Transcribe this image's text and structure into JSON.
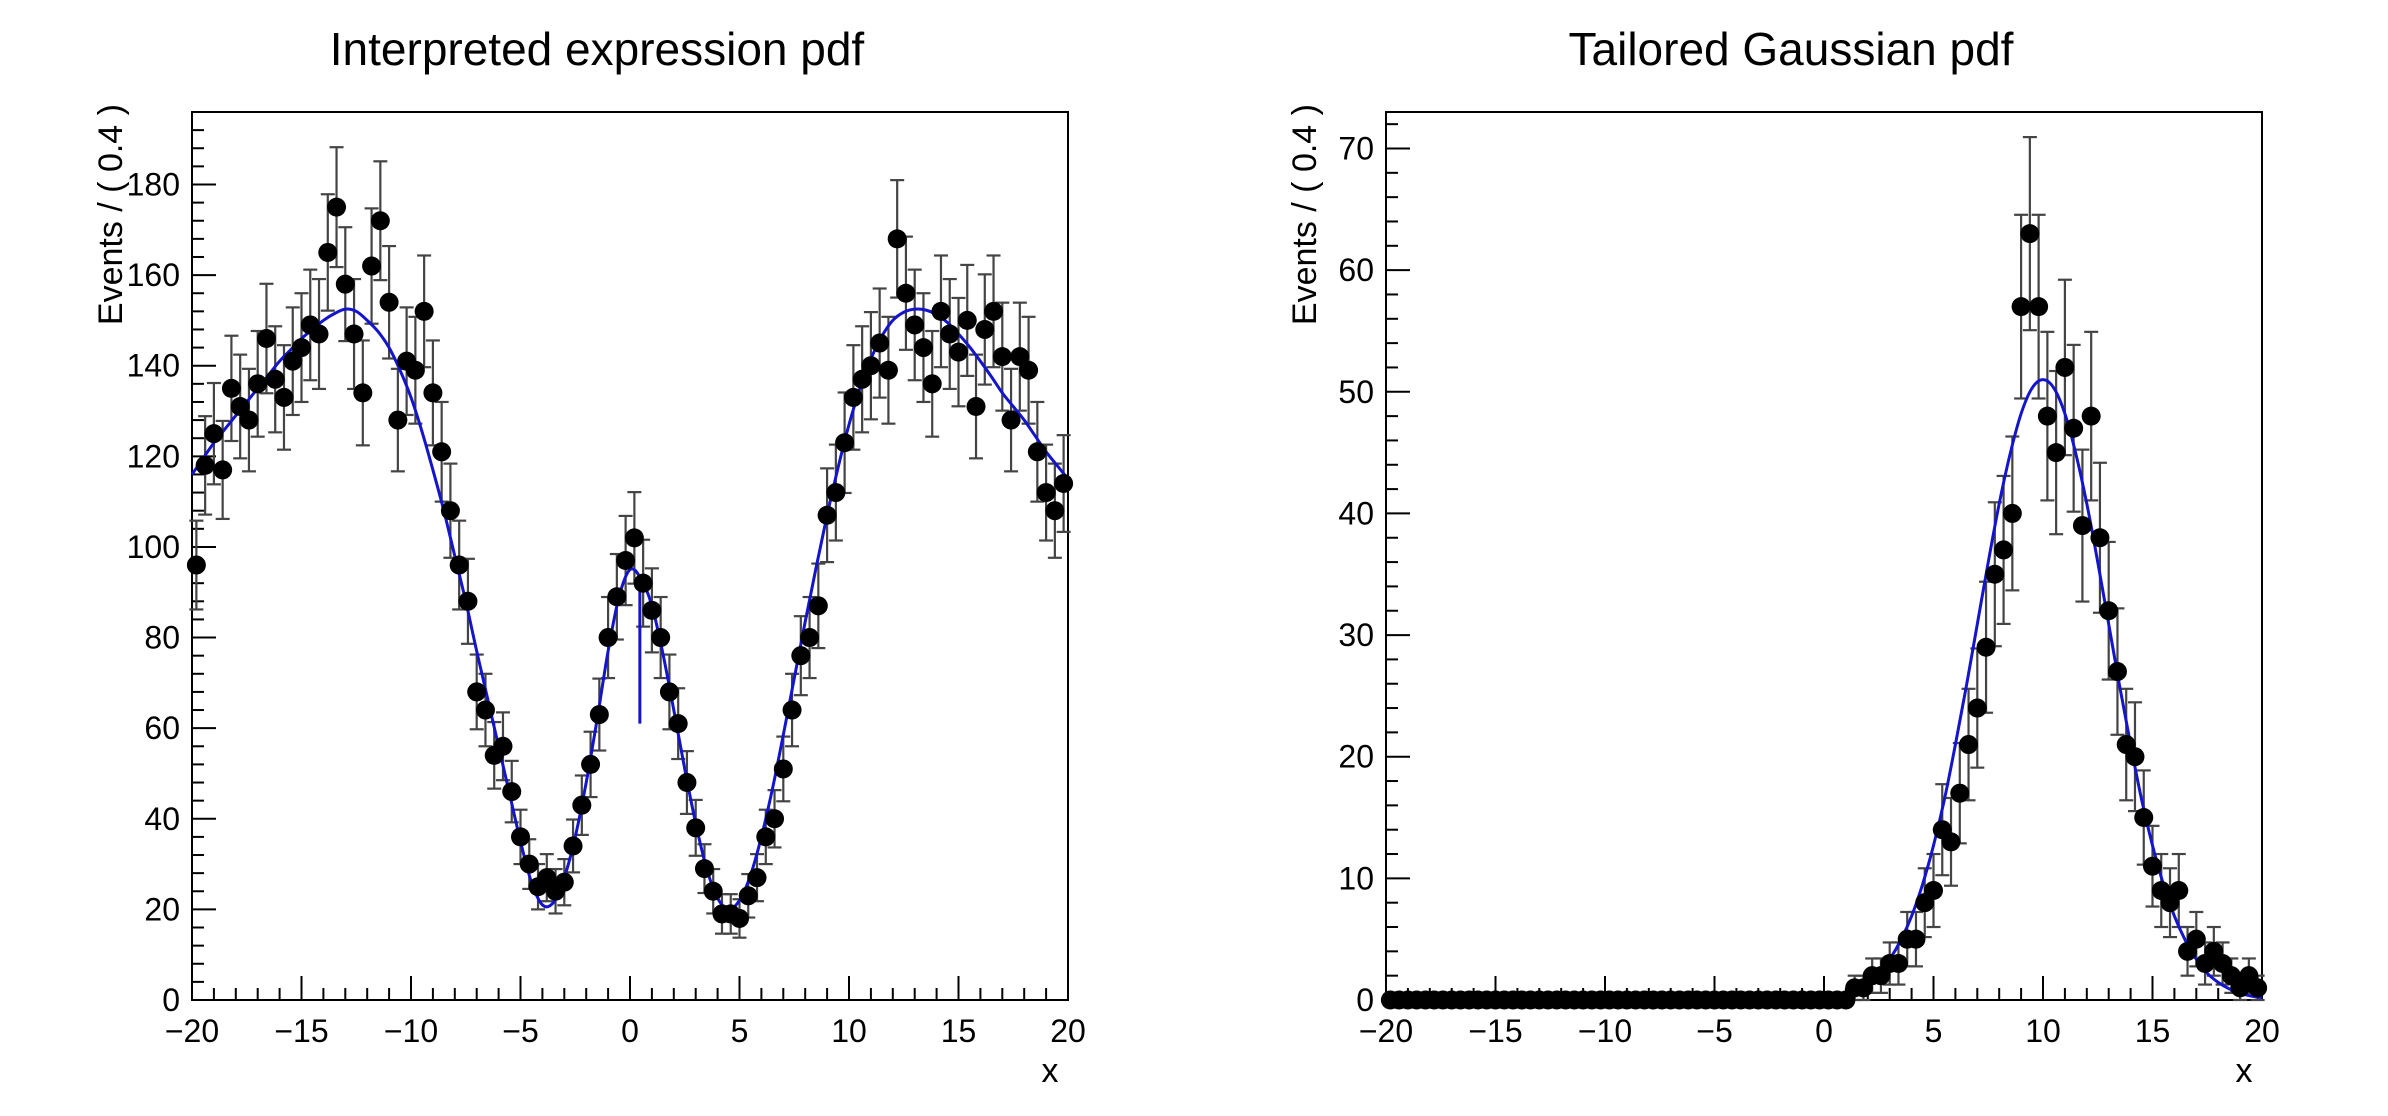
{
  "page": {
    "background": "#ffffff"
  },
  "chart_data": [
    {
      "type": "scatter",
      "title": "Interpreted expression pdf",
      "xlabel": "x",
      "ylabel": "Events / ( 0.4 )",
      "xlim": [
        -20,
        20
      ],
      "ylim": [
        0,
        196
      ],
      "x_ticks": {
        "major": 5,
        "minor": 1
      },
      "y_ticks": {
        "major": 20,
        "minor": 4
      },
      "grid": false,
      "legend": null,
      "marker": {
        "color": "#000000",
        "radius": 9.5
      },
      "error_bars": {
        "mode": "sqrt(y)",
        "color": "#444444"
      },
      "curve": {
        "color": "#1414cc",
        "width": 3,
        "notch": {
          "x": 0.45,
          "y_top": 93.5,
          "y_bottom": 61
        },
        "points": [
          [
            -20,
            116
          ],
          [
            -19.5,
            119.5
          ],
          [
            -19,
            123
          ],
          [
            -18.5,
            126
          ],
          [
            -18,
            129
          ],
          [
            -17.5,
            132
          ],
          [
            -17,
            135
          ],
          [
            -16.5,
            138
          ],
          [
            -16,
            141
          ],
          [
            -15.5,
            143.5
          ],
          [
            -15,
            146
          ],
          [
            -14.5,
            148
          ],
          [
            -14,
            150
          ],
          [
            -13.5,
            151.5
          ],
          [
            -13,
            152.5
          ],
          [
            -12.5,
            152
          ],
          [
            -12,
            150
          ],
          [
            -11.5,
            147.5
          ],
          [
            -11,
            144
          ],
          [
            -10.5,
            139
          ],
          [
            -10,
            133
          ],
          [
            -9.5,
            125.5
          ],
          [
            -9,
            117
          ],
          [
            -8.5,
            108
          ],
          [
            -8,
            98
          ],
          [
            -7.5,
            88
          ],
          [
            -7,
            77
          ],
          [
            -6.5,
            66.5
          ],
          [
            -6,
            56
          ],
          [
            -5.5,
            45.5
          ],
          [
            -5,
            35
          ],
          [
            -4.5,
            26
          ],
          [
            -4,
            21
          ],
          [
            -3.5,
            21.5
          ],
          [
            -3,
            27
          ],
          [
            -2.5,
            36
          ],
          [
            -2,
            48
          ],
          [
            -1.5,
            62
          ],
          [
            -1,
            77
          ],
          [
            -0.5,
            89
          ],
          [
            0,
            95
          ],
          [
            0.5,
            93
          ],
          [
            1,
            87
          ],
          [
            1.5,
            76.5
          ],
          [
            2,
            64
          ],
          [
            2.5,
            51
          ],
          [
            3,
            39
          ],
          [
            3.5,
            29
          ],
          [
            4,
            22.5
          ],
          [
            4.5,
            20
          ],
          [
            5,
            22
          ],
          [
            5.5,
            27.5
          ],
          [
            6,
            36
          ],
          [
            6.5,
            46.5
          ],
          [
            7,
            58.5
          ],
          [
            7.5,
            71
          ],
          [
            8,
            83.5
          ],
          [
            8.5,
            95.5
          ],
          [
            9,
            107
          ],
          [
            9.5,
            117.5
          ],
          [
            10,
            127
          ],
          [
            10.5,
            135
          ],
          [
            11,
            141.5
          ],
          [
            11.5,
            146.5
          ],
          [
            12,
            150
          ],
          [
            12.5,
            151.8
          ],
          [
            13,
            152.5
          ],
          [
            13.5,
            152.3
          ],
          [
            14,
            151.3
          ],
          [
            14.5,
            149.5
          ],
          [
            15,
            147
          ],
          [
            15.5,
            144.2
          ],
          [
            16,
            141
          ],
          [
            16.5,
            137.6
          ],
          [
            17,
            134
          ],
          [
            17.5,
            131
          ],
          [
            18,
            128
          ],
          [
            18.5,
            124.5
          ],
          [
            19,
            121
          ],
          [
            19.5,
            118
          ],
          [
            20,
            115
          ]
        ]
      },
      "points": [
        [
          -19.8,
          96
        ],
        [
          -19.4,
          118
        ],
        [
          -19.0,
          125
        ],
        [
          -18.6,
          117
        ],
        [
          -18.2,
          135
        ],
        [
          -17.8,
          131
        ],
        [
          -17.4,
          128
        ],
        [
          -17.0,
          136
        ],
        [
          -16.6,
          146
        ],
        [
          -16.2,
          137
        ],
        [
          -15.8,
          133
        ],
        [
          -15.4,
          141
        ],
        [
          -15.0,
          144
        ],
        [
          -14.6,
          149
        ],
        [
          -14.2,
          147
        ],
        [
          -13.8,
          165
        ],
        [
          -13.4,
          175
        ],
        [
          -13.0,
          158
        ],
        [
          -12.6,
          147
        ],
        [
          -12.2,
          134
        ],
        [
          -11.8,
          162
        ],
        [
          -11.4,
          172
        ],
        [
          -11.0,
          154
        ],
        [
          -10.6,
          128
        ],
        [
          -10.2,
          141
        ],
        [
          -9.8,
          139
        ],
        [
          -9.4,
          152
        ],
        [
          -9.0,
          134
        ],
        [
          -8.6,
          121
        ],
        [
          -8.2,
          108
        ],
        [
          -7.8,
          96
        ],
        [
          -7.4,
          88
        ],
        [
          -7.0,
          68
        ],
        [
          -6.6,
          64
        ],
        [
          -6.2,
          54
        ],
        [
          -5.8,
          56
        ],
        [
          -5.4,
          46
        ],
        [
          -5.0,
          36
        ],
        [
          -4.6,
          30
        ],
        [
          -4.2,
          25
        ],
        [
          -3.8,
          27
        ],
        [
          -3.4,
          24
        ],
        [
          -3.0,
          26
        ],
        [
          -2.6,
          34
        ],
        [
          -2.2,
          43
        ],
        [
          -1.8,
          52
        ],
        [
          -1.4,
          63
        ],
        [
          -1.0,
          80
        ],
        [
          -0.6,
          89
        ],
        [
          -0.2,
          97
        ],
        [
          0.2,
          102
        ],
        [
          0.6,
          92
        ],
        [
          1.0,
          86
        ],
        [
          1.4,
          80
        ],
        [
          1.8,
          68
        ],
        [
          2.2,
          61
        ],
        [
          2.6,
          48
        ],
        [
          3.0,
          38
        ],
        [
          3.4,
          29
        ],
        [
          3.8,
          24
        ],
        [
          4.2,
          19
        ],
        [
          4.6,
          19
        ],
        [
          5.0,
          18
        ],
        [
          5.4,
          23
        ],
        [
          5.8,
          27
        ],
        [
          6.2,
          36
        ],
        [
          6.6,
          40
        ],
        [
          7.0,
          51
        ],
        [
          7.4,
          64
        ],
        [
          7.8,
          76
        ],
        [
          8.2,
          80
        ],
        [
          8.6,
          87
        ],
        [
          9.0,
          107
        ],
        [
          9.4,
          112
        ],
        [
          9.8,
          123
        ],
        [
          10.2,
          133
        ],
        [
          10.6,
          137
        ],
        [
          11.0,
          140
        ],
        [
          11.4,
          145
        ],
        [
          11.8,
          139
        ],
        [
          12.2,
          168
        ],
        [
          12.6,
          156
        ],
        [
          13.0,
          149
        ],
        [
          13.4,
          144
        ],
        [
          13.8,
          136
        ],
        [
          14.2,
          152
        ],
        [
          14.6,
          147
        ],
        [
          15.0,
          143
        ],
        [
          15.4,
          150
        ],
        [
          15.8,
          131
        ],
        [
          16.2,
          148
        ],
        [
          16.6,
          152
        ],
        [
          17.0,
          142
        ],
        [
          17.4,
          128
        ],
        [
          17.8,
          142
        ],
        [
          18.2,
          139
        ],
        [
          18.6,
          121
        ],
        [
          19.0,
          112
        ],
        [
          19.4,
          108
        ],
        [
          19.8,
          114
        ]
      ]
    },
    {
      "type": "scatter",
      "title": "Tailored Gaussian pdf",
      "xlabel": "x",
      "ylabel": "Events / ( 0.4 )",
      "xlim": [
        -20,
        20
      ],
      "ylim": [
        0,
        73
      ],
      "x_ticks": {
        "major": 5,
        "minor": 1
      },
      "y_ticks": {
        "major": 10,
        "minor": 2
      },
      "grid": false,
      "legend": null,
      "marker": {
        "color": "#000000",
        "radius": 9.5
      },
      "error_bars": {
        "mode": "sqrt(y)",
        "color": "#444444"
      },
      "zero_run": {
        "x_start": -19.8,
        "x_end": 1.0,
        "step": 0.4,
        "y": 0
      },
      "curve": {
        "color": "#1414cc",
        "width": 3,
        "points": [
          [
            -20,
            0.05
          ],
          [
            -15,
            0.05
          ],
          [
            -10,
            0.05
          ],
          [
            -5,
            0.05
          ],
          [
            -2,
            0.05
          ],
          [
            -1,
            0.05
          ],
          [
            -0.5,
            0.12
          ],
          [
            0,
            0.2
          ],
          [
            0.5,
            0.3
          ],
          [
            1,
            0.56
          ],
          [
            1.5,
            0.92
          ],
          [
            2,
            1.45
          ],
          [
            2.5,
            2.2
          ],
          [
            3,
            3.35
          ],
          [
            3.5,
            4.9
          ],
          [
            4,
            6.9
          ],
          [
            4.5,
            9.5
          ],
          [
            5,
            12.7
          ],
          [
            5.5,
            16.5
          ],
          [
            6,
            21.0
          ],
          [
            6.5,
            25.8
          ],
          [
            7,
            30.9
          ],
          [
            7.5,
            36.0
          ],
          [
            8,
            40.8
          ],
          [
            8.5,
            44.9
          ],
          [
            9,
            48.2
          ],
          [
            9.5,
            50.3
          ],
          [
            10,
            51
          ],
          [
            10.5,
            50.3
          ],
          [
            11,
            48.2
          ],
          [
            11.5,
            44.9
          ],
          [
            12,
            40.8
          ],
          [
            12.5,
            36.0
          ],
          [
            13,
            30.9
          ],
          [
            13.5,
            25.8
          ],
          [
            14,
            21.0
          ],
          [
            14.5,
            16.5
          ],
          [
            15,
            12.7
          ],
          [
            15.5,
            9.5
          ],
          [
            16,
            6.9
          ],
          [
            16.5,
            4.9
          ],
          [
            17,
            3.35
          ],
          [
            17.5,
            2.2
          ],
          [
            18,
            1.45
          ],
          [
            18.5,
            0.92
          ],
          [
            19,
            0.56
          ],
          [
            19.5,
            0.33
          ],
          [
            20,
            0.19
          ]
        ]
      },
      "points": [
        [
          1.4,
          1
        ],
        [
          1.8,
          1
        ],
        [
          2.2,
          2
        ],
        [
          2.6,
          2
        ],
        [
          3.0,
          3
        ],
        [
          3.4,
          3
        ],
        [
          3.8,
          5
        ],
        [
          4.2,
          5
        ],
        [
          4.6,
          8
        ],
        [
          5.0,
          9
        ],
        [
          5.4,
          14
        ],
        [
          5.8,
          13
        ],
        [
          6.2,
          17
        ],
        [
          6.6,
          21
        ],
        [
          7.0,
          24
        ],
        [
          7.4,
          29
        ],
        [
          7.8,
          35
        ],
        [
          8.2,
          37
        ],
        [
          8.6,
          40
        ],
        [
          9.0,
          57
        ],
        [
          9.4,
          63
        ],
        [
          9.8,
          57
        ],
        [
          10.2,
          48
        ],
        [
          10.6,
          45
        ],
        [
          11.0,
          52
        ],
        [
          11.4,
          47
        ],
        [
          11.8,
          39
        ],
        [
          12.2,
          48
        ],
        [
          12.6,
          38
        ],
        [
          13.0,
          32
        ],
        [
          13.4,
          27
        ],
        [
          13.8,
          21
        ],
        [
          14.2,
          20
        ],
        [
          14.6,
          15
        ],
        [
          15.0,
          11
        ],
        [
          15.4,
          9
        ],
        [
          15.8,
          8
        ],
        [
          16.2,
          9
        ],
        [
          16.6,
          4
        ],
        [
          17.0,
          5
        ],
        [
          17.4,
          3
        ],
        [
          17.8,
          4
        ],
        [
          18.2,
          3
        ],
        [
          18.6,
          2
        ],
        [
          19.0,
          1
        ],
        [
          19.4,
          2
        ],
        [
          19.8,
          1
        ]
      ]
    }
  ]
}
